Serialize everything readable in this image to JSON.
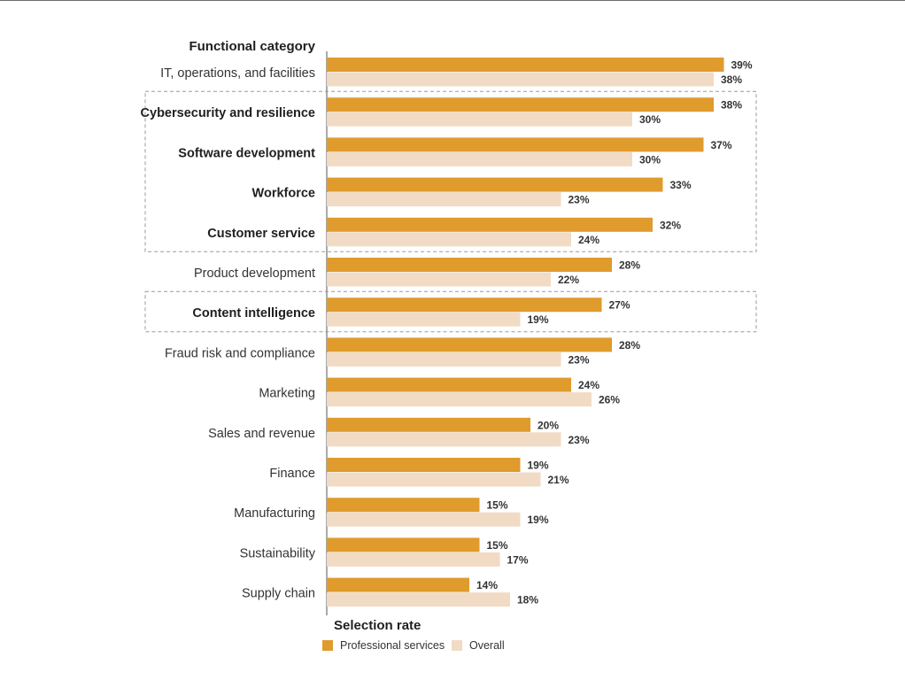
{
  "chart_data": {
    "type": "bar",
    "orientation": "horizontal",
    "category_axis_title": "Functional category",
    "value_axis_title": "Selection rate",
    "value_unit": "%",
    "xlim": [
      0,
      40
    ],
    "categories": [
      "IT, operations, and facilities",
      "Cybersecurity and resilience",
      "Software development",
      "Workforce",
      "Customer service",
      "Product development",
      "Content intelligence",
      "Fraud risk and compliance",
      "Marketing",
      "Sales and revenue",
      "Finance",
      "Manufacturing",
      "Sustainability",
      "Supply chain"
    ],
    "emphasized_categories": [
      "Cybersecurity and resilience",
      "Software development",
      "Workforce",
      "Customer service",
      "Content intelligence"
    ],
    "series": [
      {
        "name": "Professional services",
        "color": "#E09B2D",
        "values": [
          39,
          38,
          37,
          33,
          32,
          28,
          27,
          28,
          24,
          20,
          19,
          15,
          15,
          14
        ]
      },
      {
        "name": "Overall",
        "color": "#F2DBC4",
        "values": [
          38,
          30,
          30,
          23,
          24,
          22,
          19,
          23,
          26,
          23,
          21,
          19,
          17,
          18
        ]
      }
    ],
    "legend_position": "bottom-left",
    "highlight_groups": [
      [
        "Cybersecurity and resilience",
        "Software development",
        "Workforce",
        "Customer service"
      ],
      [
        "Content intelligence"
      ]
    ]
  }
}
